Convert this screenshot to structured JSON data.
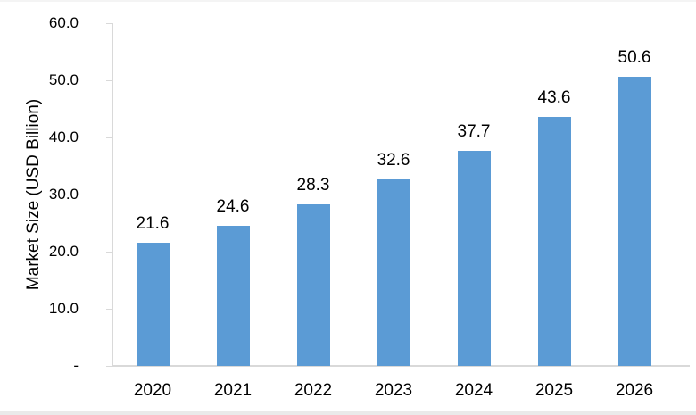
{
  "chart_data": {
    "type": "bar",
    "title": "",
    "categories": [
      "2020",
      "2021",
      "2022",
      "2023",
      "2024",
      "2025",
      "2026"
    ],
    "values": [
      21.6,
      24.6,
      28.3,
      32.6,
      37.7,
      43.6,
      50.6
    ],
    "bar_labels": [
      "21.6",
      "24.6",
      "28.3",
      "32.6",
      "37.7",
      "43.6",
      "50.6"
    ],
    "xlabel": "",
    "ylabel": "Market Size (USD Billion)",
    "ylim": [
      0,
      60
    ],
    "yticks": [
      {
        "value": 0,
        "label": "-"
      },
      {
        "value": 10,
        "label": "10.0"
      },
      {
        "value": 20,
        "label": "20.0"
      },
      {
        "value": 30,
        "label": "30.0"
      },
      {
        "value": 40,
        "label": "40.0"
      },
      {
        "value": 50,
        "label": "50.0"
      },
      {
        "value": 60,
        "label": "60.0"
      }
    ],
    "grid": false,
    "legend_position": "none",
    "colors": {
      "bar": "#5B9BD5",
      "axis": "#D9D9D9",
      "text": "#000000",
      "background": "#FFFFFF"
    }
  }
}
